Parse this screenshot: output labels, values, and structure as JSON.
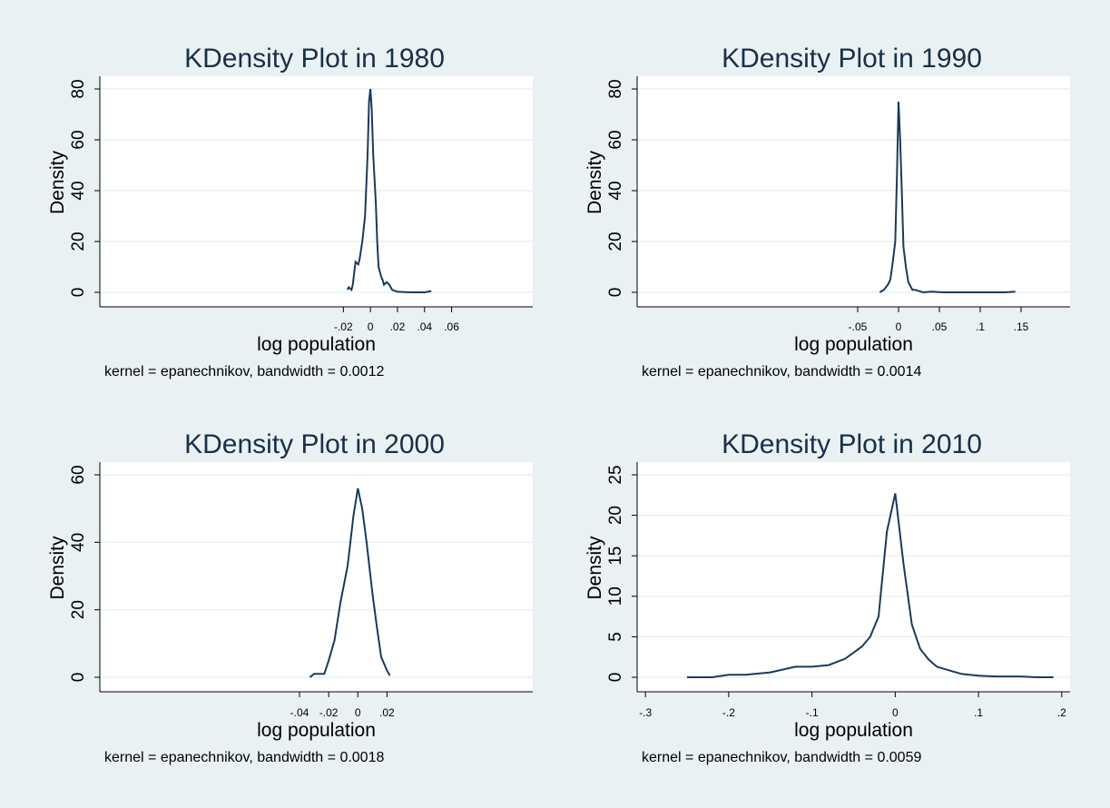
{
  "chart_data": [
    {
      "type": "line",
      "title": "KDensity Plot in 1980",
      "xlabel": "log population",
      "ylabel": "Density",
      "note": "kernel = epanechnikov, bandwidth = 0.0012",
      "xlim": [
        -0.2,
        0.12
      ],
      "ylim": [
        0,
        80
      ],
      "xticks": [
        -0.02,
        0,
        0.02,
        0.04,
        0.06
      ],
      "xtick_labels": [
        "-.02",
        "0",
        ".02",
        ".04",
        ".06"
      ],
      "yticks": [
        0,
        20,
        40,
        60,
        80
      ],
      "ytick_labels": [
        "0",
        "20",
        "40",
        "60",
        "80"
      ],
      "grid": true,
      "series": [
        {
          "x": [
            -0.017,
            -0.016,
            -0.014,
            -0.013,
            -0.011,
            -0.009,
            -0.008,
            -0.006,
            -0.004,
            -0.002,
            -0.001,
            0.0,
            0.001,
            0.002,
            0.004,
            0.005,
            0.006,
            0.008,
            0.009,
            0.01,
            0.012,
            0.014,
            0.016,
            0.02,
            0.03,
            0.04,
            0.045
          ],
          "y": [
            1,
            2,
            1,
            3,
            12,
            11,
            13,
            20,
            30,
            55,
            75,
            80,
            72,
            55,
            35,
            20,
            10,
            6,
            5,
            3,
            4,
            3,
            1,
            0.2,
            0,
            0,
            0.5
          ]
        }
      ]
    },
    {
      "type": "line",
      "title": "KDensity Plot in 1990",
      "xlabel": "log population",
      "ylabel": "Density",
      "note": "kernel = epanechnikov, bandwidth = 0.0014",
      "xlim": [
        -0.32,
        0.21
      ],
      "ylim": [
        0,
        80
      ],
      "xticks": [
        -0.05,
        0,
        0.05,
        0.1,
        0.15
      ],
      "xtick_labels": [
        "-.05",
        "0",
        ".05",
        ".1",
        ".15"
      ],
      "yticks": [
        0,
        20,
        40,
        60,
        80
      ],
      "ytick_labels": [
        "0",
        "20",
        "40",
        "60",
        "80"
      ],
      "grid": true,
      "series": [
        {
          "x": [
            -0.023,
            -0.018,
            -0.013,
            -0.01,
            -0.007,
            -0.004,
            -0.002,
            0.0,
            0.002,
            0.004,
            0.006,
            0.009,
            0.012,
            0.017,
            0.02,
            0.025,
            0.03,
            0.04,
            0.055,
            0.07,
            0.09,
            0.11,
            0.13,
            0.143
          ],
          "y": [
            0,
            1,
            3,
            5,
            12,
            20,
            45,
            75,
            60,
            40,
            18,
            10,
            4,
            1,
            1,
            0.5,
            0,
            0.3,
            0,
            0,
            0,
            0,
            0,
            0.3
          ]
        }
      ]
    },
    {
      "type": "line",
      "title": "KDensity Plot in 2000",
      "xlabel": "log population",
      "ylabel": "Density",
      "note": "kernel = epanechnikov, bandwidth = 0.0018",
      "xlim": [
        -0.177,
        0.12
      ],
      "ylim": [
        0,
        60
      ],
      "xticks": [
        -0.04,
        -0.02,
        0,
        0.02
      ],
      "xtick_labels": [
        "-.04",
        "-.02",
        "0",
        ".02"
      ],
      "yticks": [
        0,
        20,
        40,
        60
      ],
      "ytick_labels": [
        "0",
        "20",
        "40",
        "60"
      ],
      "grid": true,
      "series": [
        {
          "x": [
            -0.033,
            -0.03,
            -0.027,
            -0.023,
            -0.02,
            -0.016,
            -0.012,
            -0.007,
            -0.003,
            0.0,
            0.003,
            0.006,
            0.01,
            0.013,
            0.016,
            0.02,
            0.022
          ],
          "y": [
            0,
            1,
            1,
            1,
            5,
            11,
            22,
            33,
            48,
            56,
            50,
            40,
            25,
            15,
            6,
            2,
            0.5
          ]
        }
      ]
    },
    {
      "type": "line",
      "title": "KDensity Plot in 2010",
      "xlabel": "log population",
      "ylabel": "Density",
      "note": "kernel = epanechnikov, bandwidth = 0.0059",
      "xlim": [
        -0.31,
        0.21
      ],
      "ylim": [
        0,
        25
      ],
      "xticks": [
        -0.3,
        -0.2,
        -0.1,
        0,
        0.1,
        0.2
      ],
      "xtick_labels": [
        "-.3",
        "-.2",
        "-.1",
        "0",
        ".1",
        ".2"
      ],
      "yticks": [
        0,
        5,
        10,
        15,
        20,
        25
      ],
      "ytick_labels": [
        "0",
        "5",
        "10",
        "15",
        "20",
        "25"
      ],
      "grid": true,
      "series": [
        {
          "x": [
            -0.25,
            -0.22,
            -0.2,
            -0.18,
            -0.15,
            -0.12,
            -0.1,
            -0.08,
            -0.06,
            -0.04,
            -0.03,
            -0.02,
            -0.01,
            0.0,
            0.01,
            0.02,
            0.03,
            0.04,
            0.05,
            0.06,
            0.07,
            0.08,
            0.1,
            0.12,
            0.15,
            0.17,
            0.19
          ],
          "y": [
            0,
            0,
            0.3,
            0.3,
            0.6,
            1.3,
            1.3,
            1.5,
            2.3,
            3.8,
            5.0,
            7.5,
            18,
            22.7,
            14,
            6.5,
            3.5,
            2.2,
            1.3,
            1.0,
            0.7,
            0.4,
            0.2,
            0.1,
            0.1,
            0,
            0
          ]
        }
      ]
    }
  ]
}
